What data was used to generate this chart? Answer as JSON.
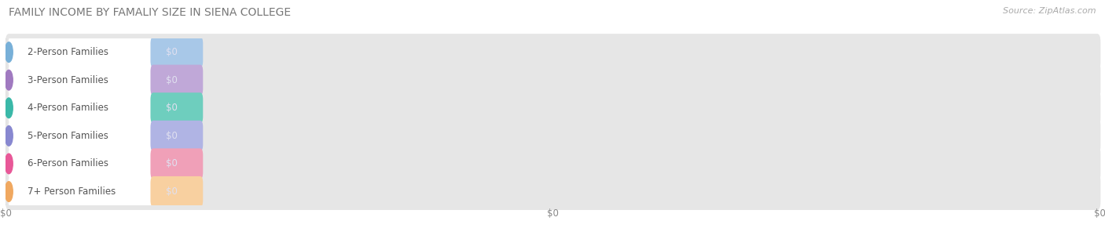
{
  "title": "FAMILY INCOME BY FAMALIY SIZE IN SIENA COLLEGE",
  "source": "Source: ZipAtlas.com",
  "categories": [
    "2-Person Families",
    "3-Person Families",
    "4-Person Families",
    "5-Person Families",
    "6-Person Families",
    "7+ Person Families"
  ],
  "values": [
    0,
    0,
    0,
    0,
    0,
    0
  ],
  "bar_colors": [
    "#a8c8e8",
    "#c0a8d8",
    "#6ecebe",
    "#b0b4e4",
    "#f0a0b8",
    "#f8d0a0"
  ],
  "circle_colors": [
    "#78b0d8",
    "#a07ac0",
    "#3ab8a8",
    "#8888d0",
    "#e85898",
    "#f0a860"
  ],
  "label_value": "$0",
  "bg_color": "#f7f7f7",
  "row_bg_color": "#e8e8e8",
  "title_fontsize": 10,
  "source_fontsize": 8,
  "label_fontsize": 8.5,
  "value_fontsize": 8.5,
  "value_text_color": "#e0e0f0",
  "label_text_color": "#555555",
  "xlim": [
    0,
    100
  ],
  "x_ticks": [
    0,
    50,
    100
  ],
  "x_tick_labels": [
    "$0",
    "$0",
    "$0"
  ]
}
